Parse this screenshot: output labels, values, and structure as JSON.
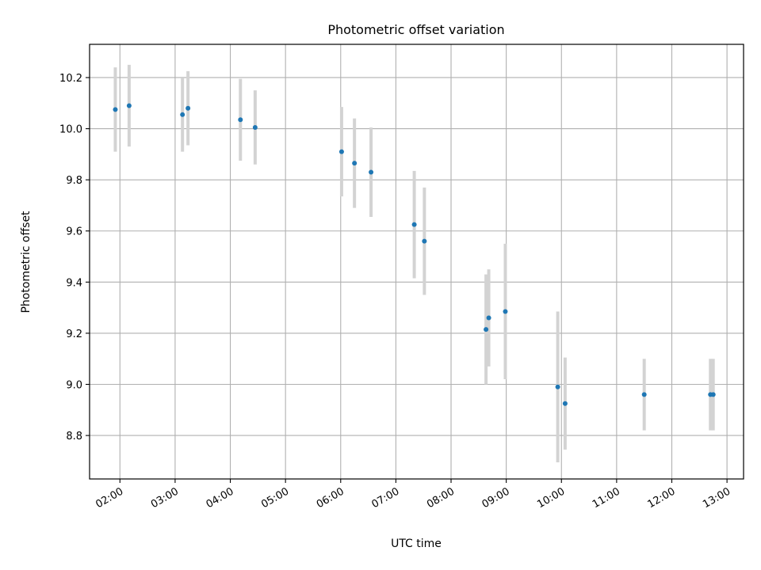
{
  "chart_data": {
    "type": "scatter",
    "title": "Photometric offset variation",
    "xlabel": "UTC time",
    "ylabel": "Photometric offset",
    "x_unit": "UTC time (HH:MM)",
    "xlim": [
      "01:27",
      "13:18"
    ],
    "ylim": [
      8.63,
      10.33
    ],
    "x_ticks": [
      "02:00",
      "03:00",
      "04:00",
      "05:00",
      "06:00",
      "07:00",
      "08:00",
      "09:00",
      "10:00",
      "11:00",
      "12:00",
      "13:00"
    ],
    "y_ticks": [
      "8.8",
      "9.0",
      "9.2",
      "9.4",
      "9.6",
      "9.8",
      "10.0",
      "10.2"
    ],
    "grid": true,
    "colors": {
      "point": "#1f77b4",
      "errorbar": "#d3d3d3",
      "grid": "#b0b0b0"
    },
    "series": [
      {
        "points": [
          {
            "x": "01:55",
            "y": 10.075,
            "err": 0.165
          },
          {
            "x": "02:10",
            "y": 10.09,
            "err": 0.16
          },
          {
            "x": "03:08",
            "y": 10.055,
            "err": 0.145
          },
          {
            "x": "03:14",
            "y": 10.08,
            "err": 0.145
          },
          {
            "x": "04:11",
            "y": 10.035,
            "err": 0.16
          },
          {
            "x": "04:27",
            "y": 10.005,
            "err": 0.145
          },
          {
            "x": "06:01",
            "y": 9.91,
            "err": 0.175
          },
          {
            "x": "06:15",
            "y": 9.865,
            "err": 0.175
          },
          {
            "x": "06:33",
            "y": 9.83,
            "err": 0.175
          },
          {
            "x": "07:20",
            "y": 9.625,
            "err": 0.21
          },
          {
            "x": "07:31",
            "y": 9.56,
            "err": 0.21
          },
          {
            "x": "08:38",
            "y": 9.215,
            "err": 0.215
          },
          {
            "x": "08:41",
            "y": 9.26,
            "err": 0.19
          },
          {
            "x": "08:59",
            "y": 9.285,
            "err": 0.265
          },
          {
            "x": "09:56",
            "y": 8.99,
            "err": 0.295
          },
          {
            "x": "10:04",
            "y": 8.925,
            "err": 0.18
          },
          {
            "x": "11:30",
            "y": 8.96,
            "err": 0.14
          },
          {
            "x": "12:42",
            "y": 8.96,
            "err": 0.14
          },
          {
            "x": "12:45",
            "y": 8.96,
            "err": 0.14
          }
        ]
      }
    ]
  }
}
